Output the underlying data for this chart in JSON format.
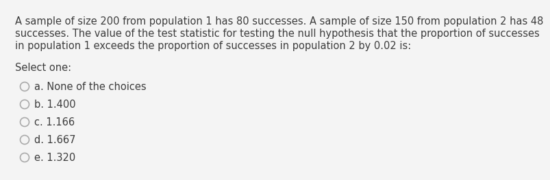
{
  "background_color": "#f4f4f4",
  "text_color": "#3d3d3d",
  "question_lines": [
    "A sample of size 200 from population 1 has 80 successes. A sample of size 150 from population 2 has 48",
    "successes. The value of the test statistic for testing the null hypothesis that the proportion of successes",
    "in population 1 exceeds the proportion of successes in population 2 by 0.02 is:"
  ],
  "select_label": "Select one:",
  "options": [
    "a. None of the choices",
    "b. 1.400",
    "c. 1.166",
    "d. 1.667",
    "e. 1.320"
  ],
  "question_fontsize": 10.5,
  "select_fontsize": 10.5,
  "option_fontsize": 10.5,
  "circle_color": "#aaaaaa",
  "font_family": "DejaVu Sans"
}
